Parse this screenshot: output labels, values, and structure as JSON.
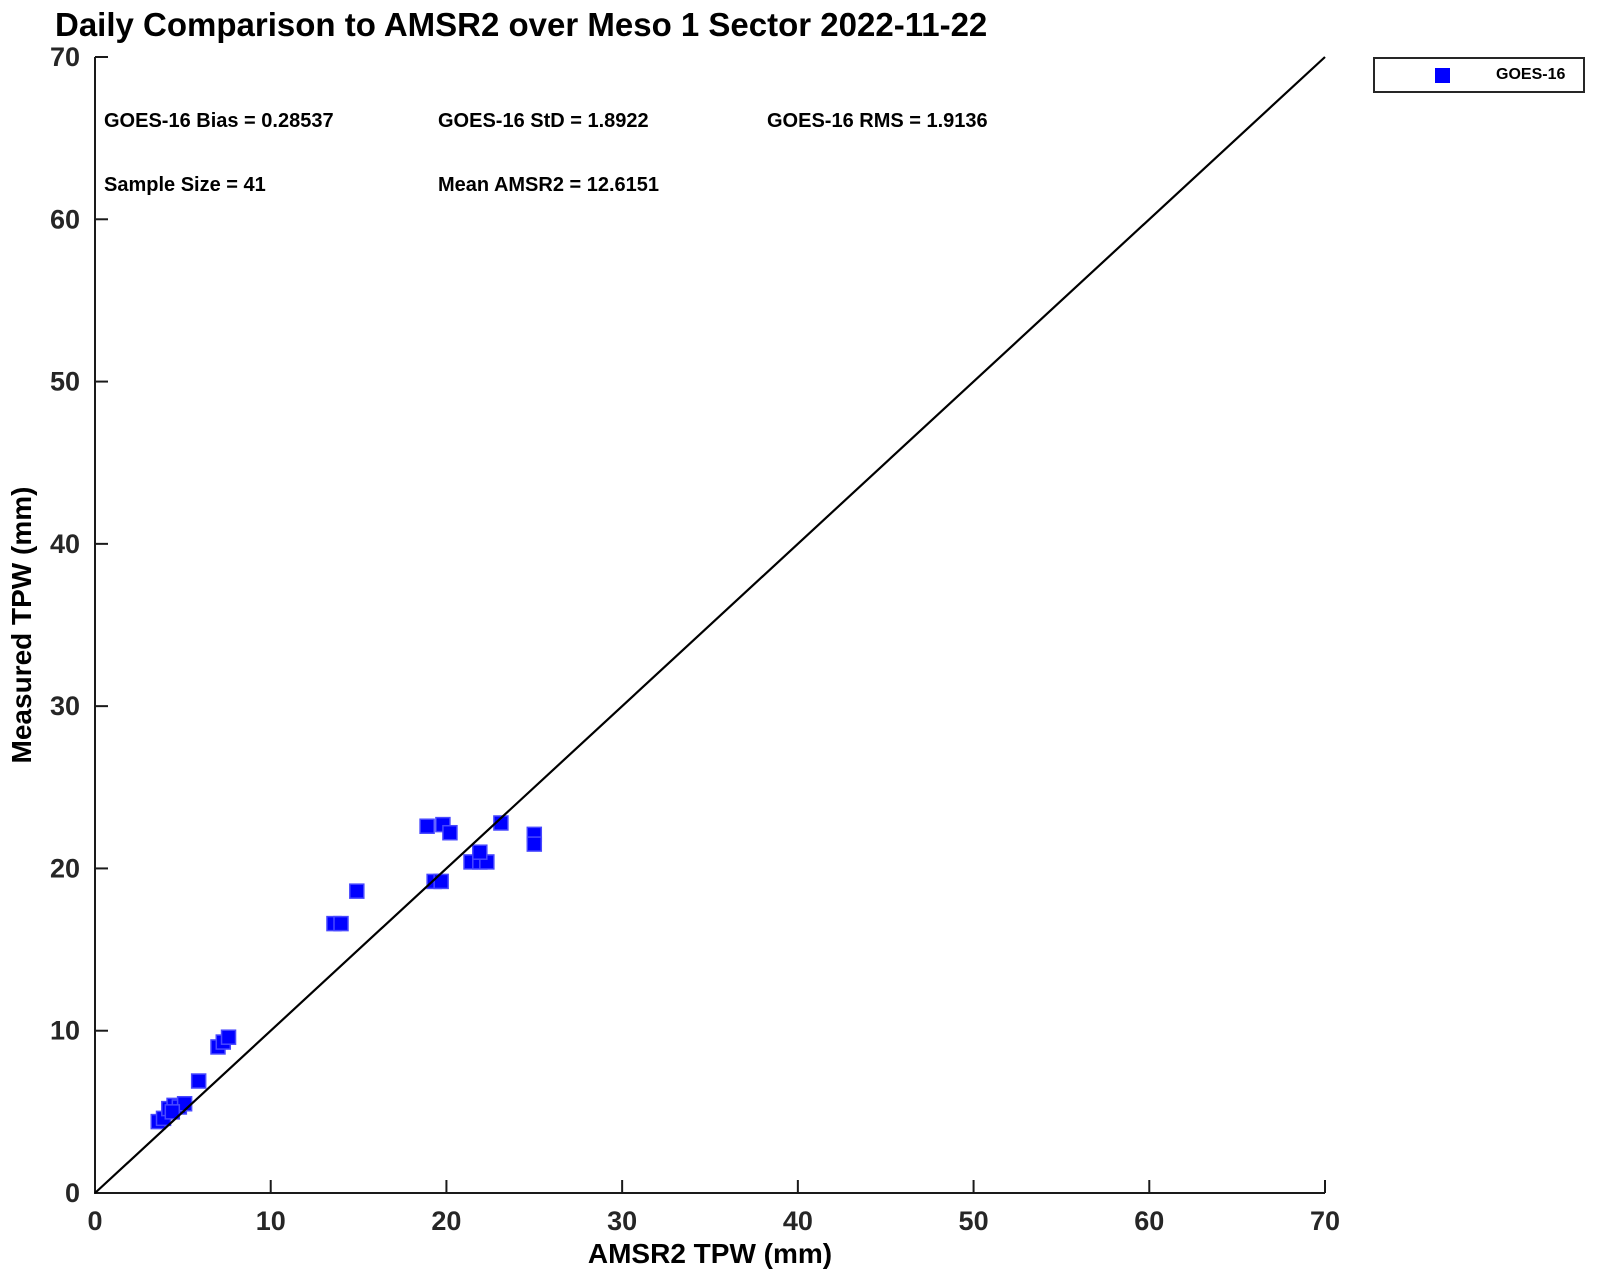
{
  "chart_data": {
    "type": "scatter",
    "title": "Daily Comparison to AMSR2 over Meso 1 Sector 2022-11-22",
    "xlabel": "AMSR2 TPW (mm)",
    "ylabel": "Measured TPW (mm)",
    "xlim": [
      0,
      70
    ],
    "ylim": [
      0,
      70
    ],
    "xticks": [
      0,
      10,
      20,
      30,
      40,
      50,
      60,
      70
    ],
    "yticks": [
      0,
      10,
      20,
      30,
      40,
      50,
      60,
      70
    ],
    "grid": false,
    "legend_position": "outside-top-right",
    "colors": {
      "marker": "#0000FF",
      "marker_edge": "#4848FF",
      "axis": "#1a1a1a",
      "tick_labels": "#262626",
      "reference_line": "#000000"
    },
    "reference_line": {
      "type": "identity",
      "from": [
        0,
        0
      ],
      "to": [
        70,
        70
      ]
    },
    "annotations": [
      {
        "text": "GOES-16 Bias = 0.28537",
        "x": 0.5,
        "y": 66.0
      },
      {
        "text": "GOES-16 StD = 1.8922",
        "x": 19.5,
        "y": 66.0
      },
      {
        "text": "GOES-16 RMS = 1.9136",
        "x": 38.2,
        "y": 66.0
      },
      {
        "text": "Sample Size = 41",
        "x": 0.5,
        "y": 62.2
      },
      {
        "text": "Mean AMSR2 = 12.6151",
        "x": 19.5,
        "y": 62.2
      }
    ],
    "series": [
      {
        "name": "GOES-16",
        "marker": "square",
        "color": "#0000FF",
        "points": [
          [
            3.6,
            4.4
          ],
          [
            3.9,
            4.6
          ],
          [
            4.2,
            5.2
          ],
          [
            4.5,
            5.4
          ],
          [
            4.8,
            5.3
          ],
          [
            5.1,
            5.5
          ],
          [
            4.4,
            5.0
          ],
          [
            5.9,
            6.9
          ],
          [
            7.0,
            9.0
          ],
          [
            7.3,
            9.3
          ],
          [
            7.6,
            9.6
          ],
          [
            13.6,
            16.6
          ],
          [
            14.0,
            16.6
          ],
          [
            14.9,
            18.6
          ],
          [
            18.9,
            22.6
          ],
          [
            19.8,
            22.7
          ],
          [
            20.2,
            22.2
          ],
          [
            19.3,
            19.2
          ],
          [
            19.7,
            19.2
          ],
          [
            21.4,
            20.4
          ],
          [
            21.9,
            20.4
          ],
          [
            22.3,
            20.4
          ],
          [
            21.9,
            21.0
          ],
          [
            23.1,
            22.8
          ],
          [
            25.0,
            22.1
          ],
          [
            25.0,
            21.5
          ]
        ]
      }
    ]
  }
}
